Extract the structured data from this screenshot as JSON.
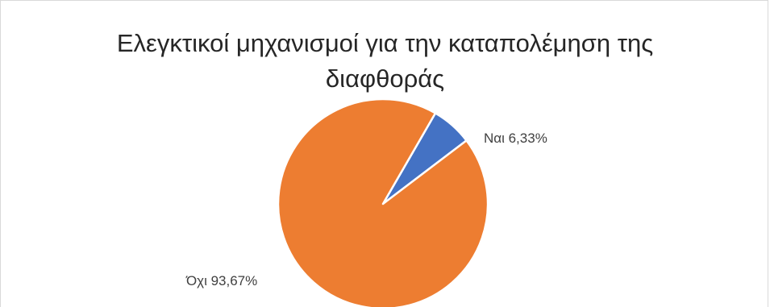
{
  "chart_data": {
    "type": "pie",
    "title_line1": "Ελεγκτικοί μηχανισμοί για την καταπολέμηση της",
    "title_line2": "διαφθοράς",
    "slices": [
      {
        "label": "Ναι",
        "value": 6.33,
        "data_label": "Ναι 6,33%",
        "color": "#4472C4"
      },
      {
        "label": "Όχι",
        "value": 93.67,
        "data_label": "Όχι 93,67%",
        "color": "#ED7D31"
      }
    ],
    "legend": "none"
  }
}
